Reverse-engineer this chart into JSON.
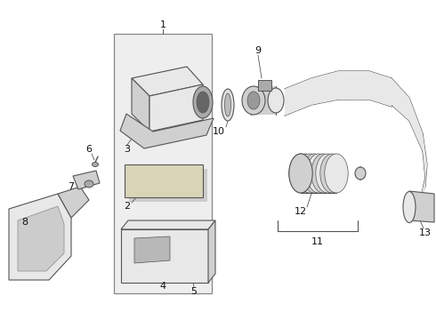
{
  "bg_color": "#ffffff",
  "lc": "#555555",
  "lc_light": "#888888",
  "fill_light": "#e8e8e8",
  "fill_mid": "#d0d0d0",
  "fill_dark": "#aaaaaa",
  "box_fill": "#eeeeee",
  "label_fs": 8,
  "label_color": "#111111"
}
